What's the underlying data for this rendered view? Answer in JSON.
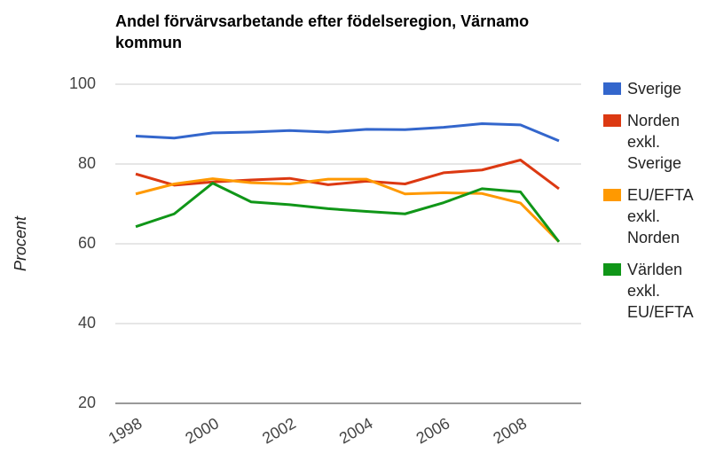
{
  "chart_data": {
    "type": "line",
    "title": "Andel förvärvsarbetande efter födelseregion, Värnamo kommun",
    "y_label": "Procent",
    "x": [
      1998,
      1999,
      2000,
      2001,
      2002,
      2003,
      2004,
      2005,
      2006,
      2007,
      2008,
      2009
    ],
    "series": [
      {
        "name": "Sverige",
        "color": "#3366cc",
        "values": [
          87,
          86.5,
          87.8,
          88,
          88.4,
          88,
          88.7,
          88.6,
          89.2,
          90.1,
          89.8,
          85.8
        ]
      },
      {
        "name": "Norden exkl. Sverige",
        "color": "#dc3912",
        "values": [
          77.5,
          74.7,
          75.5,
          76,
          76.4,
          74.8,
          75.7,
          75,
          77.8,
          78.5,
          81,
          73.8
        ]
      },
      {
        "name": "EU/EFTA exkl. Norden",
        "color": "#ff9900",
        "values": [
          72.5,
          75,
          76.3,
          75.3,
          75,
          76.2,
          76.2,
          72.5,
          72.8,
          72.6,
          70.2,
          60.5
        ]
      },
      {
        "name": "Världen exkl. EU/EFTA",
        "color": "#109618",
        "values": [
          64.3,
          67.5,
          75.2,
          70.5,
          69.8,
          68.8,
          68.1,
          67.5,
          70.3,
          73.8,
          73,
          60.5
        ]
      }
    ],
    "xlim": [
      1998,
      2009
    ],
    "xticks": [
      1998,
      2000,
      2002,
      2004,
      2006,
      2008
    ],
    "ylim": [
      20,
      100
    ],
    "yticks": [
      20,
      40,
      60,
      80,
      100
    ],
    "grid": true,
    "legend": "right"
  }
}
